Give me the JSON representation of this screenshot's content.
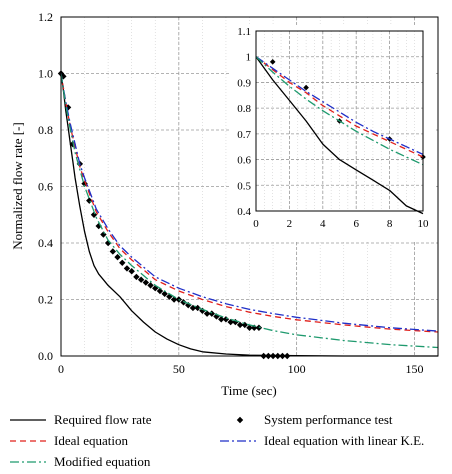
{
  "chart_data": [
    {
      "id": "main",
      "type": "line",
      "xlabel": "Time (sec)",
      "ylabel": "Normalized flow rate [-]",
      "xlim": [
        0,
        160
      ],
      "ylim": [
        0,
        1.2
      ],
      "xticks": [
        0,
        50,
        100,
        150
      ],
      "yticks": [
        0.0,
        0.2,
        0.4,
        0.6,
        0.8,
        1.0,
        1.2
      ],
      "ytick_labels": [
        "0.0",
        "0.2",
        "0.4",
        "0.6",
        "0.8",
        "1.0",
        "1.2"
      ],
      "grid": true,
      "legend_position": "bottom",
      "series": [
        {
          "key": "required",
          "name": "Required flow rate",
          "style": "solid",
          "color": "#000000",
          "x": [
            0,
            1,
            2,
            3,
            4,
            5,
            6,
            8,
            10,
            12,
            14,
            16,
            18,
            20,
            25,
            30,
            35,
            40,
            45,
            50,
            55,
            60,
            70,
            80,
            90,
            100,
            120,
            140,
            160
          ],
          "y": [
            1.0,
            0.94,
            0.87,
            0.81,
            0.75,
            0.69,
            0.63,
            0.53,
            0.44,
            0.37,
            0.32,
            0.29,
            0.27,
            0.25,
            0.21,
            0.16,
            0.12,
            0.085,
            0.06,
            0.04,
            0.025,
            0.015,
            0.007,
            0.003,
            0.002,
            0.001,
            0.0,
            0.0,
            0.0
          ]
        },
        {
          "key": "test",
          "name": "System performance test",
          "style": "markers",
          "color": "#000000",
          "x": [
            0,
            1,
            3,
            5,
            8,
            10,
            12,
            14,
            16,
            18,
            20,
            22,
            24,
            26,
            28,
            30,
            32,
            34,
            36,
            38,
            40,
            42,
            44,
            46,
            48,
            50,
            52,
            54,
            56,
            58,
            60,
            62,
            64,
            66,
            68,
            70,
            72,
            74,
            76,
            78,
            80,
            82,
            84,
            86,
            88,
            90,
            92,
            94,
            96
          ],
          "y": [
            1.0,
            0.99,
            0.88,
            0.75,
            0.68,
            0.61,
            0.55,
            0.5,
            0.46,
            0.43,
            0.4,
            0.37,
            0.35,
            0.33,
            0.31,
            0.3,
            0.28,
            0.27,
            0.26,
            0.25,
            0.24,
            0.23,
            0.22,
            0.21,
            0.2,
            0.2,
            0.19,
            0.18,
            0.17,
            0.17,
            0.16,
            0.15,
            0.15,
            0.14,
            0.13,
            0.13,
            0.12,
            0.12,
            0.11,
            0.11,
            0.1,
            0.1,
            0.1,
            0.0,
            0.0,
            0.0,
            0.0,
            0.0,
            0.0
          ]
        },
        {
          "key": "ideal",
          "name": "Ideal equation",
          "style": "dashed",
          "color": "#e0201b",
          "x": [
            0,
            2,
            4,
            6,
            8,
            10,
            15,
            20,
            25,
            30,
            40,
            50,
            60,
            70,
            80,
            90,
            100,
            120,
            140,
            160
          ],
          "y": [
            1.0,
            0.9,
            0.81,
            0.74,
            0.67,
            0.62,
            0.51,
            0.44,
            0.38,
            0.34,
            0.27,
            0.23,
            0.2,
            0.175,
            0.155,
            0.14,
            0.128,
            0.11,
            0.095,
            0.085
          ]
        },
        {
          "key": "linear",
          "name": "Ideal equation with linear K.E.",
          "style": "dashdot",
          "color": "#1f2fc8",
          "x": [
            0,
            2,
            4,
            6,
            8,
            10,
            15,
            20,
            25,
            30,
            40,
            50,
            60,
            70,
            80,
            90,
            100,
            120,
            140,
            160
          ],
          "y": [
            1.0,
            0.9,
            0.82,
            0.75,
            0.68,
            0.63,
            0.52,
            0.45,
            0.39,
            0.35,
            0.28,
            0.24,
            0.21,
            0.185,
            0.165,
            0.15,
            0.137,
            0.116,
            0.1,
            0.088
          ]
        },
        {
          "key": "modified",
          "name": "Modified equation",
          "style": "dashdot",
          "color": "#1f9a6e",
          "x": [
            0,
            2,
            4,
            6,
            8,
            10,
            15,
            20,
            25,
            30,
            40,
            50,
            60,
            70,
            80,
            90,
            100,
            120,
            140,
            160
          ],
          "y": [
            1.0,
            0.89,
            0.8,
            0.72,
            0.66,
            0.6,
            0.49,
            0.41,
            0.36,
            0.32,
            0.25,
            0.2,
            0.165,
            0.135,
            0.11,
            0.09,
            0.075,
            0.055,
            0.04,
            0.03
          ]
        }
      ]
    },
    {
      "id": "inset",
      "type": "line",
      "xlim": [
        0,
        10
      ],
      "ylim": [
        0.4,
        1.1
      ],
      "xticks": [
        0,
        2,
        4,
        6,
        8,
        10
      ],
      "yticks": [
        0.4,
        0.5,
        0.6,
        0.7,
        0.8,
        0.9,
        1.0,
        1.1
      ],
      "ytick_labels": [
        "0.4",
        "0.5",
        "0.6",
        "0.7",
        "0.8",
        "0.9",
        "1",
        "1.1"
      ],
      "grid": true,
      "series": [
        {
          "key": "required",
          "x": [
            0,
            1,
            2,
            3,
            4,
            5,
            6,
            7,
            8,
            9,
            10
          ],
          "y": [
            1.0,
            0.91,
            0.83,
            0.75,
            0.66,
            0.6,
            0.56,
            0.52,
            0.48,
            0.42,
            0.39
          ]
        },
        {
          "key": "test",
          "x": [
            1,
            3,
            5,
            8,
            10
          ],
          "y": [
            0.98,
            0.88,
            0.75,
            0.68,
            0.61
          ]
        },
        {
          "key": "ideal",
          "x": [
            0,
            1,
            2,
            3,
            4,
            5,
            6,
            7,
            8,
            9,
            10
          ],
          "y": [
            1.0,
            0.95,
            0.9,
            0.86,
            0.81,
            0.77,
            0.73,
            0.7,
            0.67,
            0.64,
            0.61
          ]
        },
        {
          "key": "linear",
          "x": [
            0,
            1,
            2,
            3,
            4,
            5,
            6,
            7,
            8,
            9,
            10
          ],
          "y": [
            1.0,
            0.955,
            0.91,
            0.865,
            0.825,
            0.785,
            0.745,
            0.71,
            0.68,
            0.65,
            0.62
          ]
        },
        {
          "key": "modified",
          "x": [
            0,
            1,
            2,
            3,
            4,
            5,
            6,
            7,
            8,
            9,
            10
          ],
          "y": [
            1.0,
            0.94,
            0.885,
            0.835,
            0.79,
            0.75,
            0.71,
            0.675,
            0.64,
            0.61,
            0.58
          ]
        }
      ]
    }
  ]
}
